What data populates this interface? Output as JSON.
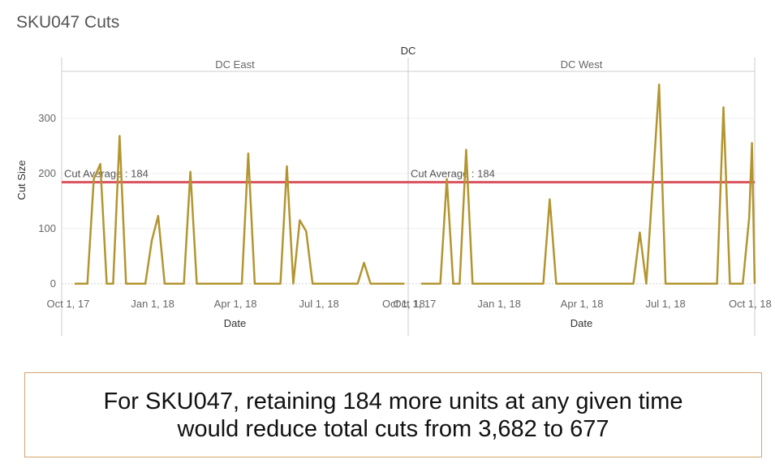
{
  "title": "SKU047 Cuts",
  "chart_data": {
    "type": "line",
    "facet_header": "DC",
    "xlabel": "Date",
    "ylabel": "Cut Size",
    "ylim": [
      -15,
      385
    ],
    "xlim": [
      "2017-09-24",
      "2018-10-06"
    ],
    "yticks": [
      0,
      100,
      200,
      300
    ],
    "xticks": [
      {
        "label": "Oct 1, 17",
        "date": "2017-10-01"
      },
      {
        "label": "Jan 1, 18",
        "date": "2018-01-01"
      },
      {
        "label": "Apr 1, 18",
        "date": "2018-04-01"
      },
      {
        "label": "Jul 1, 18",
        "date": "2018-07-01"
      },
      {
        "label": "Oct 1, 18",
        "date": "2018-10-01"
      }
    ],
    "line_color": "#b39530",
    "average_color": "#d9545e",
    "grid": true,
    "panels": [
      {
        "name": "DC East",
        "average": 184,
        "average_label": "Cut Average : 184",
        "points": [
          [
            "2017-10-08",
            0
          ],
          [
            "2017-10-22",
            0
          ],
          [
            "2017-10-29",
            190
          ],
          [
            "2017-11-05",
            217
          ],
          [
            "2017-11-12",
            0
          ],
          [
            "2017-11-19",
            0
          ],
          [
            "2017-11-26",
            268
          ],
          [
            "2017-12-03",
            0
          ],
          [
            "2017-12-10",
            0
          ],
          [
            "2017-12-17",
            0
          ],
          [
            "2017-12-24",
            0
          ],
          [
            "2017-12-31",
            78
          ],
          [
            "2018-01-07",
            123
          ],
          [
            "2018-01-14",
            0
          ],
          [
            "2018-01-21",
            0
          ],
          [
            "2018-01-28",
            0
          ],
          [
            "2018-02-04",
            0
          ],
          [
            "2018-02-11",
            203
          ],
          [
            "2018-02-18",
            0
          ],
          [
            "2018-02-25",
            0
          ],
          [
            "2018-03-04",
            0
          ],
          [
            "2018-03-11",
            0
          ],
          [
            "2018-03-18",
            0
          ],
          [
            "2018-03-25",
            0
          ],
          [
            "2018-04-01",
            0
          ],
          [
            "2018-04-08",
            0
          ],
          [
            "2018-04-15",
            236
          ],
          [
            "2018-04-22",
            0
          ],
          [
            "2018-04-29",
            0
          ],
          [
            "2018-05-06",
            0
          ],
          [
            "2018-05-13",
            0
          ],
          [
            "2018-05-20",
            0
          ],
          [
            "2018-05-27",
            213
          ],
          [
            "2018-06-03",
            0
          ],
          [
            "2018-06-10",
            115
          ],
          [
            "2018-06-17",
            95
          ],
          [
            "2018-06-24",
            0
          ],
          [
            "2018-07-01",
            0
          ],
          [
            "2018-07-08",
            0
          ],
          [
            "2018-07-15",
            0
          ],
          [
            "2018-07-22",
            0
          ],
          [
            "2018-07-29",
            0
          ],
          [
            "2018-08-05",
            0
          ],
          [
            "2018-08-12",
            0
          ],
          [
            "2018-08-19",
            38
          ],
          [
            "2018-08-26",
            0
          ],
          [
            "2018-09-02",
            0
          ],
          [
            "2018-09-09",
            0
          ],
          [
            "2018-09-16",
            0
          ],
          [
            "2018-09-23",
            0
          ],
          [
            "2018-09-30",
            0
          ],
          [
            "2018-10-02",
            0
          ]
        ]
      },
      {
        "name": "DC West",
        "average": 184,
        "average_label": "Cut Average : 184",
        "points": [
          [
            "2017-10-08",
            0
          ],
          [
            "2017-10-22",
            0
          ],
          [
            "2017-10-29",
            0
          ],
          [
            "2017-11-05",
            190
          ],
          [
            "2017-11-12",
            0
          ],
          [
            "2017-11-19",
            0
          ],
          [
            "2017-11-26",
            243
          ],
          [
            "2017-12-03",
            0
          ],
          [
            "2017-12-10",
            0
          ],
          [
            "2017-12-17",
            0
          ],
          [
            "2017-12-24",
            0
          ],
          [
            "2017-12-31",
            0
          ],
          [
            "2018-01-07",
            0
          ],
          [
            "2018-01-14",
            0
          ],
          [
            "2018-01-21",
            0
          ],
          [
            "2018-01-28",
            0
          ],
          [
            "2018-02-04",
            0
          ],
          [
            "2018-02-11",
            0
          ],
          [
            "2018-02-18",
            0
          ],
          [
            "2018-02-25",
            153
          ],
          [
            "2018-03-04",
            0
          ],
          [
            "2018-03-11",
            0
          ],
          [
            "2018-03-18",
            0
          ],
          [
            "2018-03-25",
            0
          ],
          [
            "2018-04-01",
            0
          ],
          [
            "2018-04-08",
            0
          ],
          [
            "2018-04-15",
            0
          ],
          [
            "2018-04-22",
            0
          ],
          [
            "2018-04-29",
            0
          ],
          [
            "2018-05-06",
            0
          ],
          [
            "2018-05-13",
            0
          ],
          [
            "2018-05-20",
            0
          ],
          [
            "2018-05-27",
            0
          ],
          [
            "2018-06-03",
            93
          ],
          [
            "2018-06-10",
            0
          ],
          [
            "2018-06-17",
            180
          ],
          [
            "2018-06-24",
            361
          ],
          [
            "2018-07-01",
            0
          ],
          [
            "2018-07-08",
            0
          ],
          [
            "2018-07-15",
            0
          ],
          [
            "2018-07-22",
            0
          ],
          [
            "2018-07-29",
            0
          ],
          [
            "2018-08-05",
            0
          ],
          [
            "2018-08-12",
            0
          ],
          [
            "2018-08-19",
            0
          ],
          [
            "2018-08-26",
            0
          ],
          [
            "2018-09-02",
            320
          ],
          [
            "2018-09-09",
            0
          ],
          [
            "2018-09-16",
            0
          ],
          [
            "2018-09-23",
            0
          ],
          [
            "2018-09-30",
            120
          ],
          [
            "2018-10-03",
            255
          ],
          [
            "2018-10-06",
            0
          ]
        ]
      }
    ]
  },
  "callout": {
    "line1": "For SKU047, retaining 184 more units at any given time",
    "line2": "would reduce total cuts from 3,682 to 677"
  }
}
